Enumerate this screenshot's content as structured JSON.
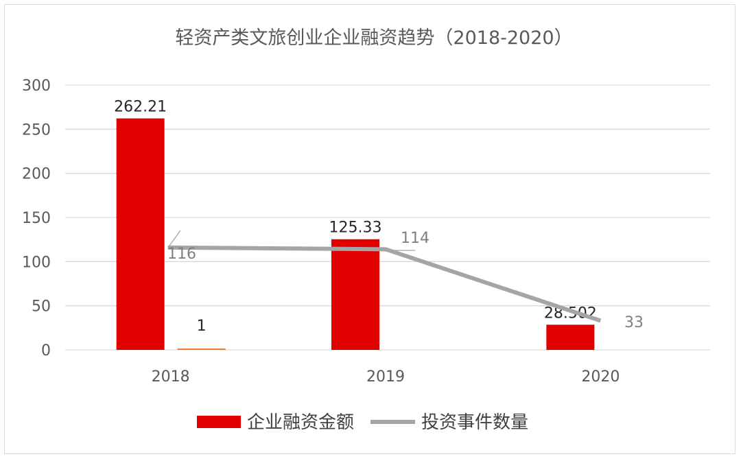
{
  "chart_data": {
    "type": "bar",
    "title": "轻资产类文旅创业企业融资趋势（2018-2020）",
    "categories": [
      "2018",
      "2019",
      "2020"
    ],
    "ylim": [
      0,
      300
    ],
    "yticks": [
      "0",
      "50",
      "100",
      "150",
      "200",
      "250",
      "300"
    ],
    "grid": true,
    "legend_position": "bottom",
    "series": [
      {
        "name": "企业融资金额",
        "type": "bar",
        "color": "#e00000",
        "values": [
          262.21,
          125.33,
          28.502
        ],
        "labels": [
          "262.21",
          "125.33",
          "28.502"
        ]
      },
      {
        "type": "bar",
        "color": "#ed7d31",
        "values": [
          1,
          null,
          null
        ],
        "labels": [
          "1",
          "",
          ""
        ]
      },
      {
        "name": "投资事件数量",
        "type": "line",
        "color": "#a5a5a5",
        "values": [
          116,
          114,
          33
        ],
        "labels": [
          "116",
          "114",
          "33"
        ]
      }
    ]
  }
}
